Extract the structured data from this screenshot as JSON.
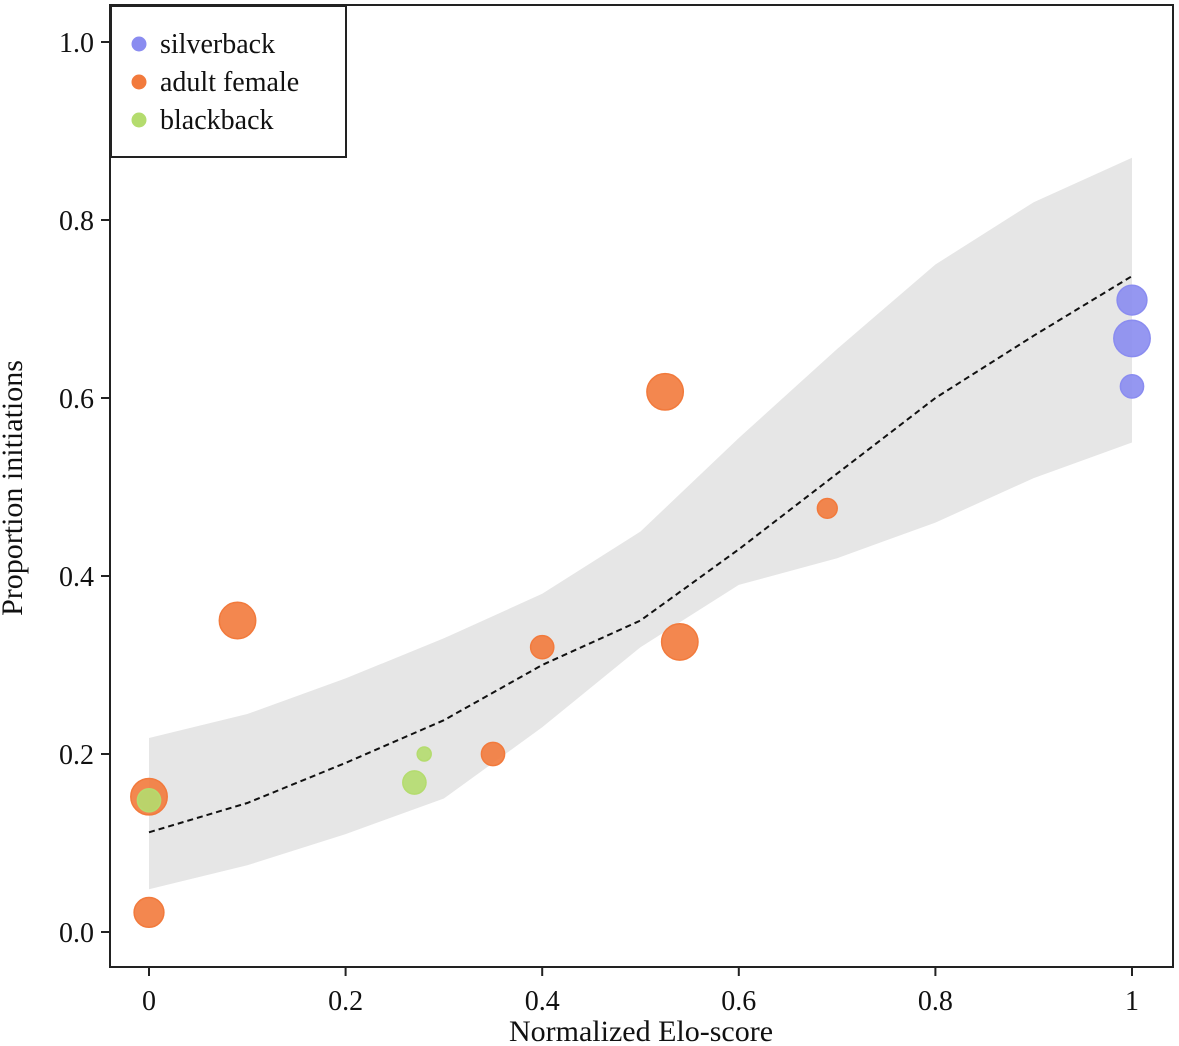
{
  "chart_data": {
    "type": "scatter",
    "title": "",
    "xlabel": "Normalized Elo-score",
    "ylabel": "Proportion initiations",
    "xlim": [
      -0.04,
      1.04
    ],
    "ylim": [
      -0.04,
      1.04
    ],
    "grid": false,
    "legend_position": "top-left",
    "x_ticks": [
      0,
      0.2,
      0.4,
      0.6,
      0.8,
      1
    ],
    "x_tick_labels": [
      "0",
      "0.2",
      "0.4",
      "0.6",
      "0.8",
      "1"
    ],
    "y_ticks": [
      0,
      0.2,
      0.4,
      0.6,
      0.8,
      1.0
    ],
    "y_tick_labels": [
      "0.0",
      "0.2",
      "0.4",
      "0.6",
      "0.8",
      "1.0"
    ],
    "series": [
      {
        "name": "silverback",
        "color": "#8a8cf0",
        "points": [
          {
            "x": 1.0,
            "y": 0.71,
            "size": 3
          },
          {
            "x": 1.0,
            "y": 0.667,
            "size": 4
          },
          {
            "x": 1.0,
            "y": 0.613,
            "size": 2
          }
        ]
      },
      {
        "name": "adult female",
        "color": "#f27a3c",
        "points": [
          {
            "x": 0.0,
            "y": 0.152,
            "size": 4
          },
          {
            "x": 0.0,
            "y": 0.022,
            "size": 3
          },
          {
            "x": 0.09,
            "y": 0.35,
            "size": 4
          },
          {
            "x": 0.35,
            "y": 0.2,
            "size": 2
          },
          {
            "x": 0.4,
            "y": 0.32,
            "size": 2
          },
          {
            "x": 0.525,
            "y": 0.607,
            "size": 4
          },
          {
            "x": 0.54,
            "y": 0.326,
            "size": 4
          },
          {
            "x": 0.69,
            "y": 0.476,
            "size": 1.5
          }
        ]
      },
      {
        "name": "blackback",
        "color": "#b4dc6e",
        "points": [
          {
            "x": 0.0,
            "y": 0.148,
            "size": 2
          },
          {
            "x": 0.27,
            "y": 0.168,
            "size": 2
          },
          {
            "x": 0.28,
            "y": 0.2,
            "size": 0.6
          }
        ]
      }
    ],
    "fit_line": {
      "style": "dashed",
      "x": [
        0,
        0.1,
        0.2,
        0.3,
        0.4,
        0.5,
        0.6,
        0.7,
        0.8,
        0.9,
        1.0
      ],
      "y": [
        0.112,
        0.145,
        0.19,
        0.238,
        0.3,
        0.35,
        0.43,
        0.515,
        0.6,
        0.67,
        0.737
      ],
      "ci_lower": [
        0.048,
        0.075,
        0.11,
        0.15,
        0.23,
        0.32,
        0.39,
        0.42,
        0.46,
        0.51,
        0.55
      ],
      "ci_upper": [
        0.218,
        0.245,
        0.285,
        0.33,
        0.38,
        0.45,
        0.555,
        0.655,
        0.75,
        0.82,
        0.87
      ]
    }
  }
}
